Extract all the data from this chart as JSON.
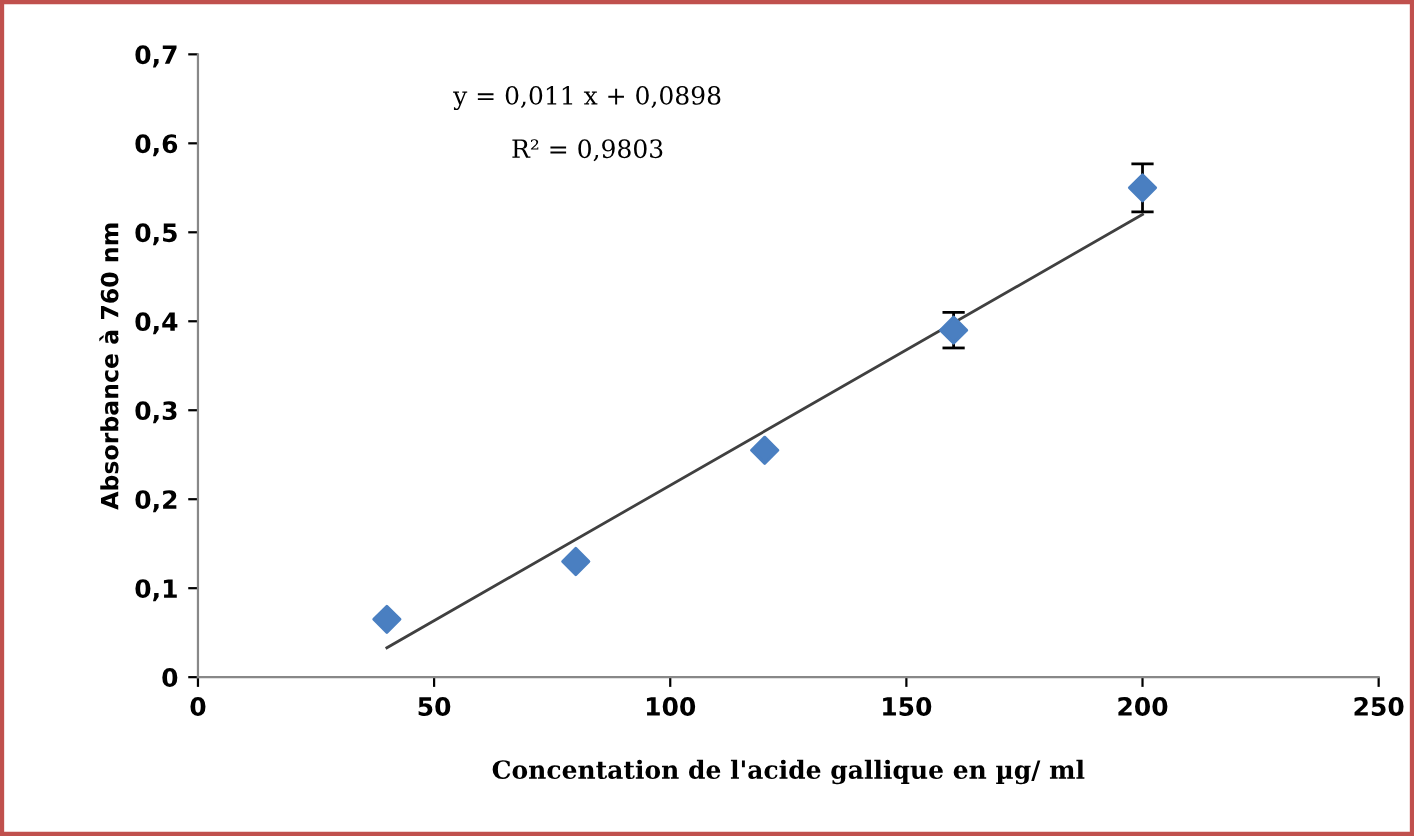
{
  "chart_data": {
    "type": "scatter",
    "xlabel": "Concentation de l'acide gallique en µg/ ml",
    "ylabel": "Absorbance à 760 nm",
    "x": [
      40,
      80,
      120,
      160,
      200
    ],
    "series": [
      {
        "color": "#4a7fc1",
        "values": [
          0.065,
          0.13,
          0.255,
          0.39,
          0.55
        ],
        "errors": [
          null,
          null,
          null,
          0.02,
          0.027
        ],
        "marker": "diamond"
      },
      {
        "type": "line",
        "color": "#404040",
        "x": [
          40,
          200
        ],
        "values": [
          0.033,
          0.52
        ],
        "line_style": "solid",
        "marker": "none"
      }
    ],
    "annotations": [
      "y = 0,011 x + 0,0898",
      "R² = 0,9803"
    ],
    "xlim": [
      0,
      250
    ],
    "xticks": [
      0,
      50,
      100,
      150,
      200,
      250
    ],
    "ylim": [
      0,
      0.7
    ],
    "yticks": [
      0,
      {
        "value": 0.1,
        "label": "0,1"
      },
      {
        "value": 0.2,
        "label": "0,2"
      },
      {
        "value": 0.3,
        "label": "0,3"
      },
      {
        "value": 0.4,
        "label": "0,4"
      },
      {
        "value": 0.5,
        "label": "0,5"
      },
      {
        "value": 0.6,
        "label": "0,6"
      },
      {
        "value": 0.7,
        "label": "0,7"
      }
    ],
    "grid": false
  }
}
